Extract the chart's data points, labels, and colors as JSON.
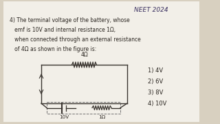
{
  "bg_color": "#d8d0c0",
  "page_color": "#f2efe8",
  "title": "NEET 2024",
  "q_lines": [
    "4) The terminal voltage of the battery, whose",
    "   emf is 10V and internal resistance 1Ω,",
    "   when connected through an external resistance",
    "   of 4Ω as shown in the figure is:"
  ],
  "options": [
    "1) 4V",
    "2) 6V",
    "3) 8V",
    "4) 10V"
  ],
  "ext_res_label": "4Ω",
  "int_res_label": "1Ω",
  "emf_label": "10V",
  "text_color": "#2a2520",
  "title_color": "#3a3060",
  "line_color": "#3a3530",
  "dash_color": "#707070"
}
